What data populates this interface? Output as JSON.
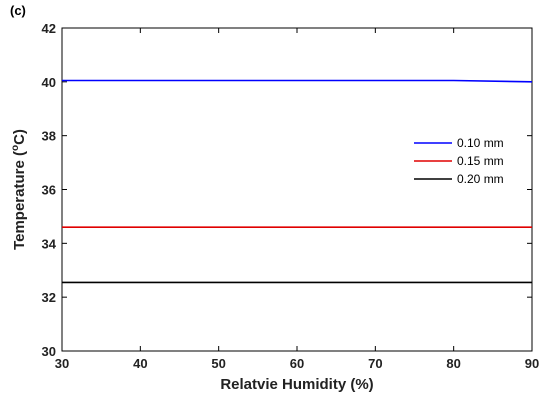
{
  "panel_label": "(c)",
  "chart_data": {
    "type": "line",
    "xlabel": "Relatvie Humidity (%)",
    "ylabel_main": "Temperature (",
    "ylabel_sup": "o",
    "ylabel_end": "C)",
    "xlim": [
      30,
      90
    ],
    "ylim": [
      30,
      42
    ],
    "xticks": [
      30,
      40,
      50,
      60,
      70,
      80,
      90
    ],
    "yticks": [
      30,
      32,
      34,
      36,
      38,
      40,
      42
    ],
    "grid": false,
    "legend_position": "right",
    "x": [
      30,
      40,
      50,
      60,
      70,
      80,
      90
    ],
    "series": [
      {
        "name": "0.10 mm",
        "color": "#0000ff",
        "values": [
          40.05,
          40.05,
          40.05,
          40.05,
          40.05,
          40.05,
          40.0
        ]
      },
      {
        "name": "0.15 mm",
        "color": "#e00000",
        "values": [
          34.6,
          34.6,
          34.6,
          34.6,
          34.6,
          34.6,
          34.6
        ]
      },
      {
        "name": "0.20 mm",
        "color": "#000000",
        "values": [
          32.55,
          32.55,
          32.55,
          32.55,
          32.55,
          32.55,
          32.55
        ]
      }
    ]
  }
}
